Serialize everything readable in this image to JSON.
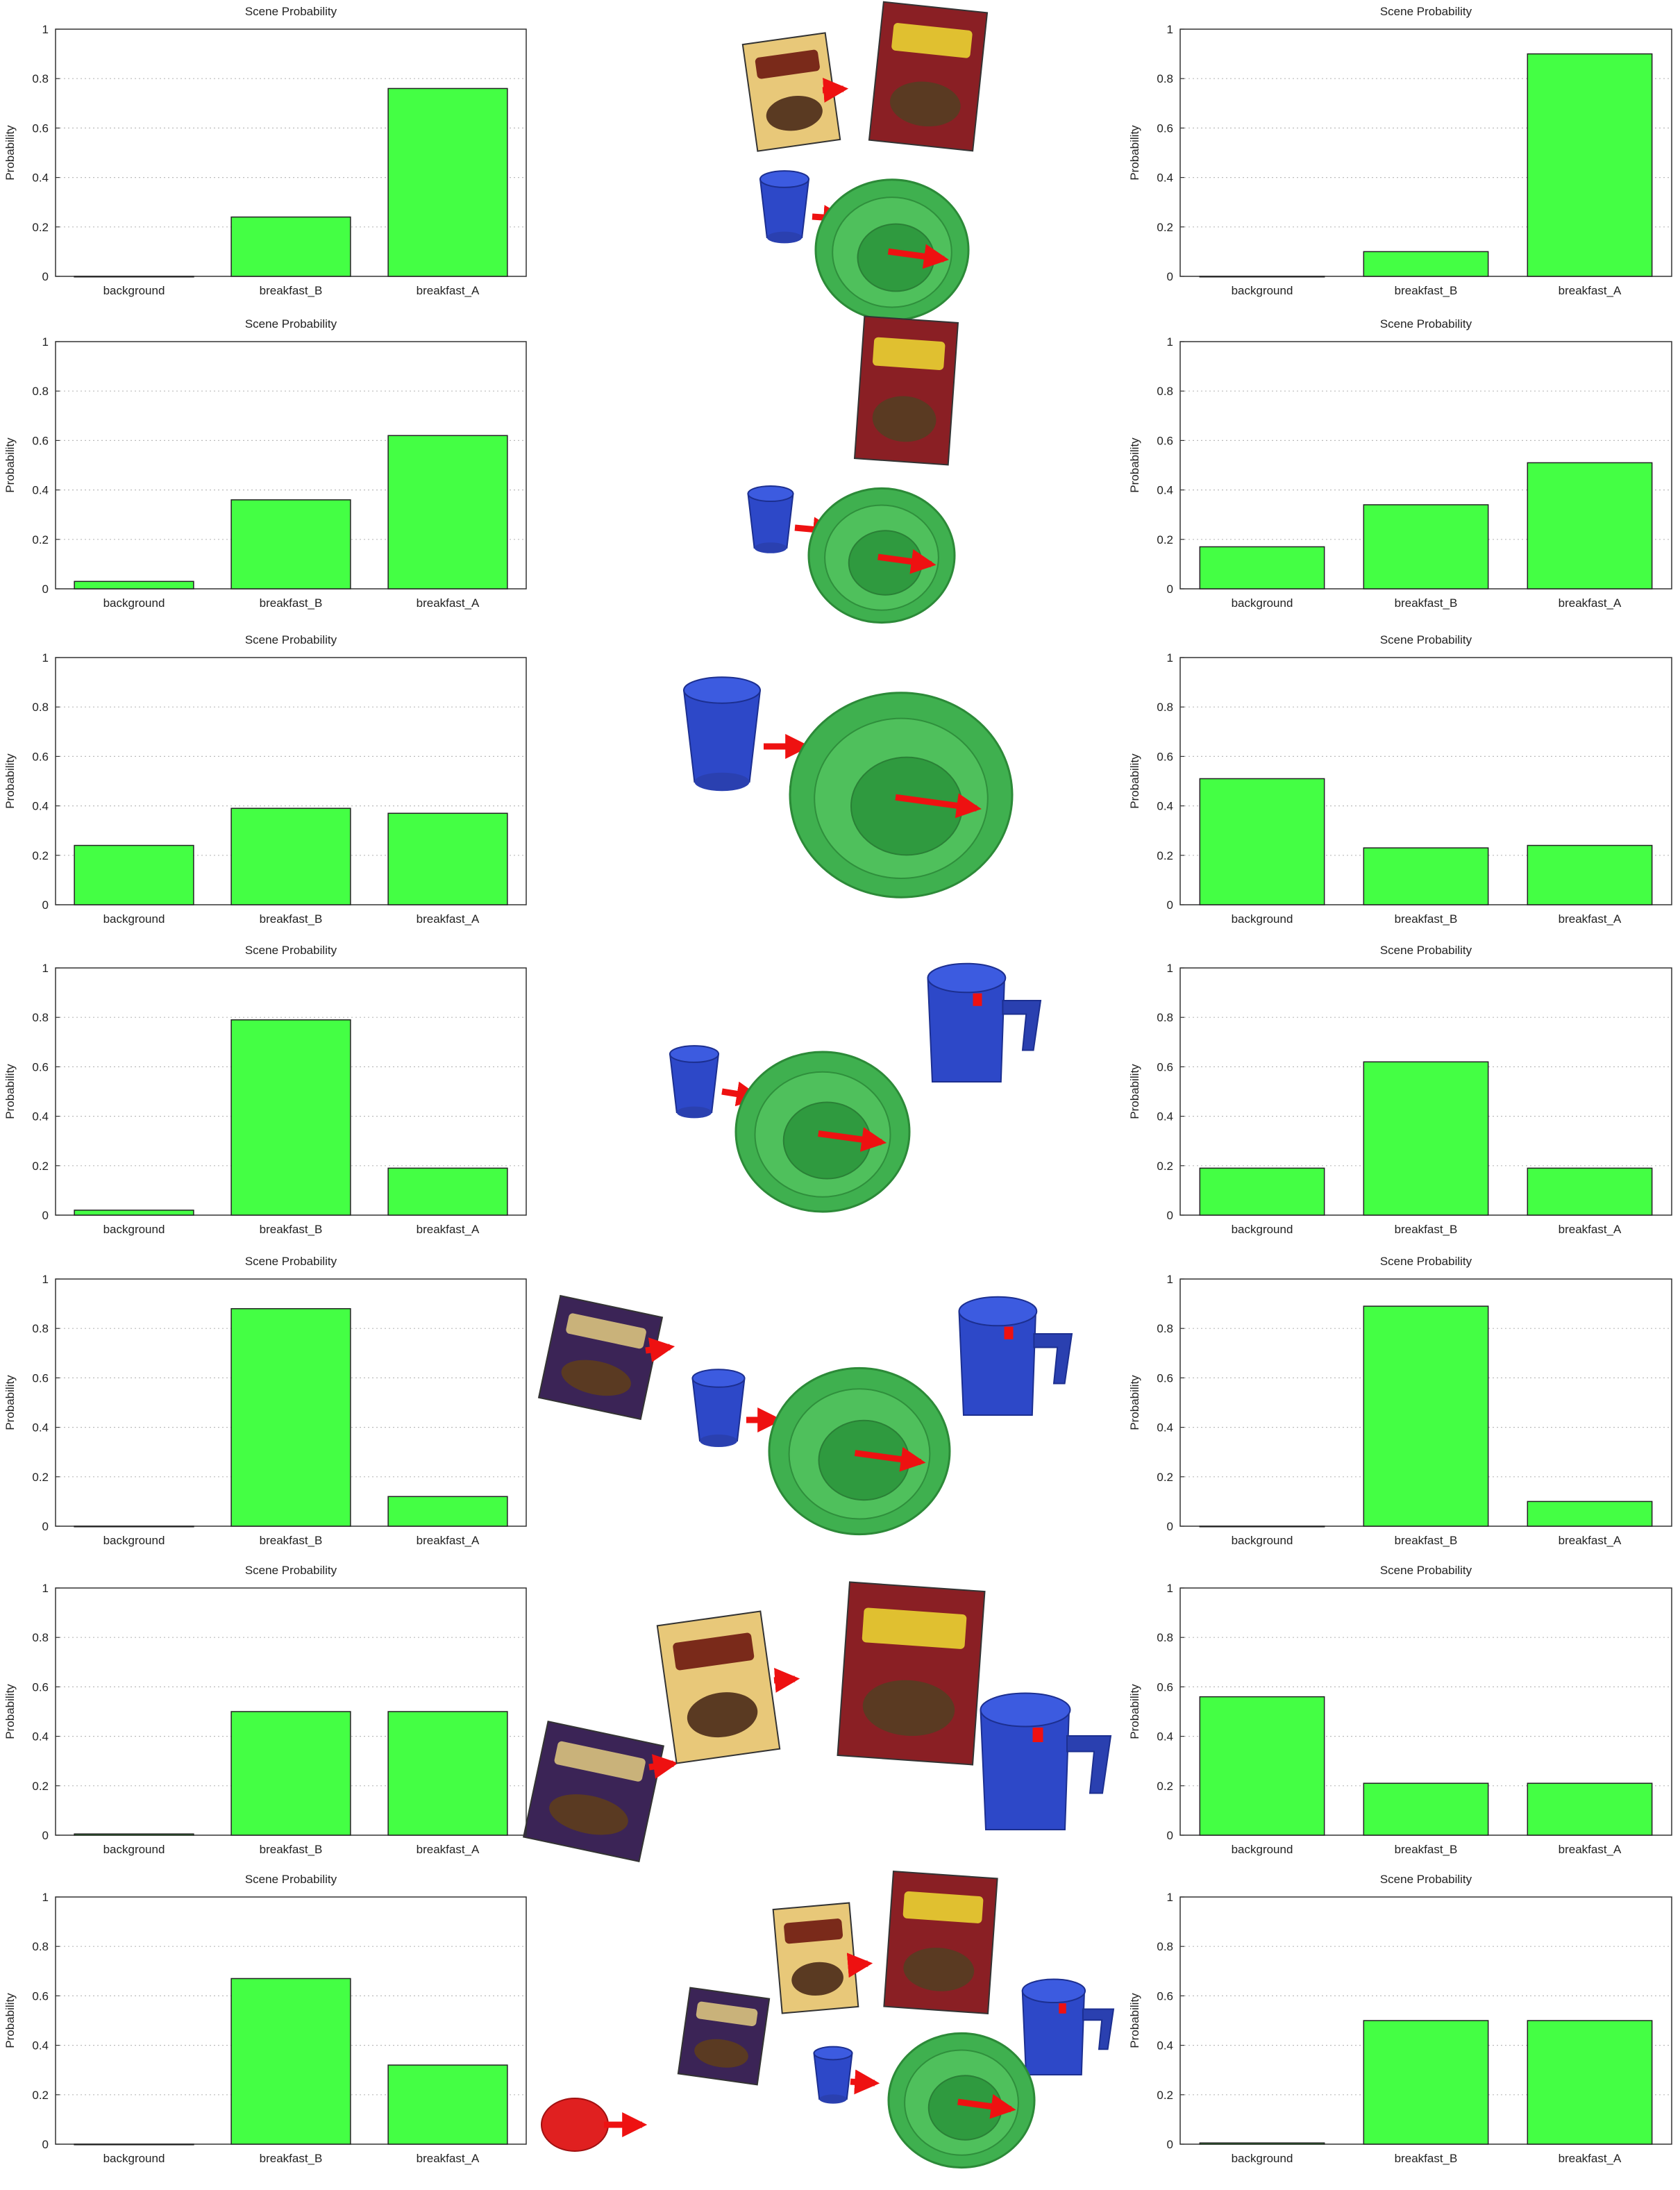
{
  "chart_data": [
    {
      "type": "bar",
      "title": "Scene Probability",
      "ylabel": "Probability",
      "categories": [
        "background",
        "breakfast_B",
        "breakfast_A"
      ],
      "values": [
        0.0,
        0.24,
        0.76
      ],
      "ylim": [
        0,
        1
      ],
      "yticks": [
        "0",
        "0.2",
        "0.4",
        "0.6",
        "0.8",
        "1"
      ],
      "grid": "y-dotted"
    },
    {
      "type": "bar",
      "title": "Scene Probability",
      "ylabel": "Probability",
      "categories": [
        "background",
        "breakfast_B",
        "breakfast_A"
      ],
      "values": [
        0.0,
        0.1,
        0.9
      ],
      "ylim": [
        0,
        1
      ],
      "yticks": [
        "0",
        "0.2",
        "0.4",
        "0.6",
        "0.8",
        "1"
      ],
      "grid": "y-dotted"
    },
    {
      "type": "bar",
      "title": "Scene Probability",
      "ylabel": "Probability",
      "categories": [
        "background",
        "breakfast_B",
        "breakfast_A"
      ],
      "values": [
        0.03,
        0.36,
        0.62
      ],
      "ylim": [
        0,
        1
      ],
      "yticks": [
        "0",
        "0.2",
        "0.4",
        "0.6",
        "0.8",
        "1"
      ],
      "grid": "y-dotted"
    },
    {
      "type": "bar",
      "title": "Scene Probability",
      "ylabel": "Probability",
      "categories": [
        "background",
        "breakfast_B",
        "breakfast_A"
      ],
      "values": [
        0.17,
        0.34,
        0.51
      ],
      "ylim": [
        0,
        1
      ],
      "yticks": [
        "0",
        "0.2",
        "0.4",
        "0.6",
        "0.8",
        "1"
      ],
      "grid": "y-dotted"
    },
    {
      "type": "bar",
      "title": "Scene Probability",
      "ylabel": "Probability",
      "categories": [
        "background",
        "breakfast_B",
        "breakfast_A"
      ],
      "values": [
        0.24,
        0.39,
        0.37
      ],
      "ylim": [
        0,
        1
      ],
      "yticks": [
        "0",
        "0.2",
        "0.4",
        "0.6",
        "0.8",
        "1"
      ],
      "grid": "y-dotted"
    },
    {
      "type": "bar",
      "title": "Scene Probability",
      "ylabel": "Probability",
      "categories": [
        "background",
        "breakfast_B",
        "breakfast_A"
      ],
      "values": [
        0.51,
        0.23,
        0.24
      ],
      "ylim": [
        0,
        1
      ],
      "yticks": [
        "0",
        "0.2",
        "0.4",
        "0.6",
        "0.8",
        "1"
      ],
      "grid": "y-dotted"
    },
    {
      "type": "bar",
      "title": "Scene Probability",
      "ylabel": "Probability",
      "categories": [
        "background",
        "breakfast_B",
        "breakfast_A"
      ],
      "values": [
        0.02,
        0.79,
        0.19
      ],
      "ylim": [
        0,
        1
      ],
      "yticks": [
        "0",
        "0.2",
        "0.4",
        "0.6",
        "0.8",
        "1"
      ],
      "grid": "y-dotted"
    },
    {
      "type": "bar",
      "title": "Scene Probability",
      "ylabel": "Probability",
      "categories": [
        "background",
        "breakfast_B",
        "breakfast_A"
      ],
      "values": [
        0.19,
        0.62,
        0.19
      ],
      "ylim": [
        0,
        1
      ],
      "yticks": [
        "0",
        "0.2",
        "0.4",
        "0.6",
        "0.8",
        "1"
      ],
      "grid": "y-dotted"
    },
    {
      "type": "bar",
      "title": "Scene Probability",
      "ylabel": "Probability",
      "categories": [
        "background",
        "breakfast_B",
        "breakfast_A"
      ],
      "values": [
        0.0,
        0.88,
        0.12
      ],
      "ylim": [
        0,
        1
      ],
      "yticks": [
        "0",
        "0.2",
        "0.4",
        "0.6",
        "0.8",
        "1"
      ],
      "grid": "y-dotted"
    },
    {
      "type": "bar",
      "title": "Scene Probability",
      "ylabel": "Probability",
      "categories": [
        "background",
        "breakfast_B",
        "breakfast_A"
      ],
      "values": [
        0.0,
        0.89,
        0.1
      ],
      "ylim": [
        0,
        1
      ],
      "yticks": [
        "0",
        "0.2",
        "0.4",
        "0.6",
        "0.8",
        "1"
      ],
      "grid": "y-dotted"
    },
    {
      "type": "bar",
      "title": "Scene Probability",
      "ylabel": "Probability",
      "categories": [
        "background",
        "breakfast_B",
        "breakfast_A"
      ],
      "values": [
        0.005,
        0.5,
        0.5
      ],
      "ylim": [
        0,
        1
      ],
      "yticks": [
        "0",
        "0.2",
        "0.4",
        "0.6",
        "0.8",
        "1"
      ],
      "grid": "y-dotted"
    },
    {
      "type": "bar",
      "title": "Scene Probability",
      "ylabel": "Probability",
      "categories": [
        "background",
        "breakfast_B",
        "breakfast_A"
      ],
      "values": [
        0.56,
        0.21,
        0.21
      ],
      "ylim": [
        0,
        1
      ],
      "yticks": [
        "0",
        "0.2",
        "0.4",
        "0.6",
        "0.8",
        "1"
      ],
      "grid": "y-dotted"
    },
    {
      "type": "bar",
      "title": "Scene Probability",
      "ylabel": "Probability",
      "categories": [
        "background",
        "breakfast_B",
        "breakfast_A"
      ],
      "values": [
        0.0,
        0.67,
        0.32
      ],
      "ylim": [
        0,
        1
      ],
      "yticks": [
        "0",
        "0.2",
        "0.4",
        "0.6",
        "0.8",
        "1"
      ],
      "grid": "y-dotted"
    },
    {
      "type": "bar",
      "title": "Scene Probability",
      "ylabel": "Probability",
      "categories": [
        "background",
        "breakfast_B",
        "breakfast_A"
      ],
      "values": [
        0.005,
        0.5,
        0.5
      ],
      "ylim": [
        0,
        1
      ],
      "yticks": [
        "0",
        "0.2",
        "0.4",
        "0.6",
        "0.8",
        "1"
      ],
      "grid": "y-dotted"
    }
  ],
  "colors": {
    "bar_fill": "#44ff44",
    "bar_stroke": "#222222",
    "grid": "#bbbbbb",
    "axis": "#333333",
    "bowl": "#3fb04f",
    "bowl_inner": "#2f9a3f",
    "cup": "#2d48c8",
    "jug": "#2d48c8",
    "arrow": "#ee1111",
    "cereal_red": "#8a1f24",
    "cereal_yellow": "#e8c879",
    "cereal_purple": "#3b2456",
    "spoon_red": "#e02020"
  },
  "scenes": [
    {
      "objects": [
        "vitalis-cereal-box",
        "smacks-cereal-box",
        "cup",
        "bowl"
      ]
    },
    {
      "objects": [
        "smacks-cereal-box",
        "cup",
        "bowl"
      ]
    },
    {
      "objects": [
        "cup",
        "bowl"
      ]
    },
    {
      "objects": [
        "cup",
        "bowl",
        "jug"
      ]
    },
    {
      "objects": [
        "purple-cereal-box",
        "cup",
        "bowl",
        "jug"
      ]
    },
    {
      "objects": [
        "purple-cereal-box",
        "vitalis-cereal-box",
        "smacks-cereal-box",
        "jug"
      ]
    },
    {
      "objects": [
        "red-spoon",
        "purple-cereal-box",
        "vitalis-cereal-box",
        "smacks-cereal-box",
        "jug",
        "cup",
        "bowl"
      ]
    }
  ]
}
